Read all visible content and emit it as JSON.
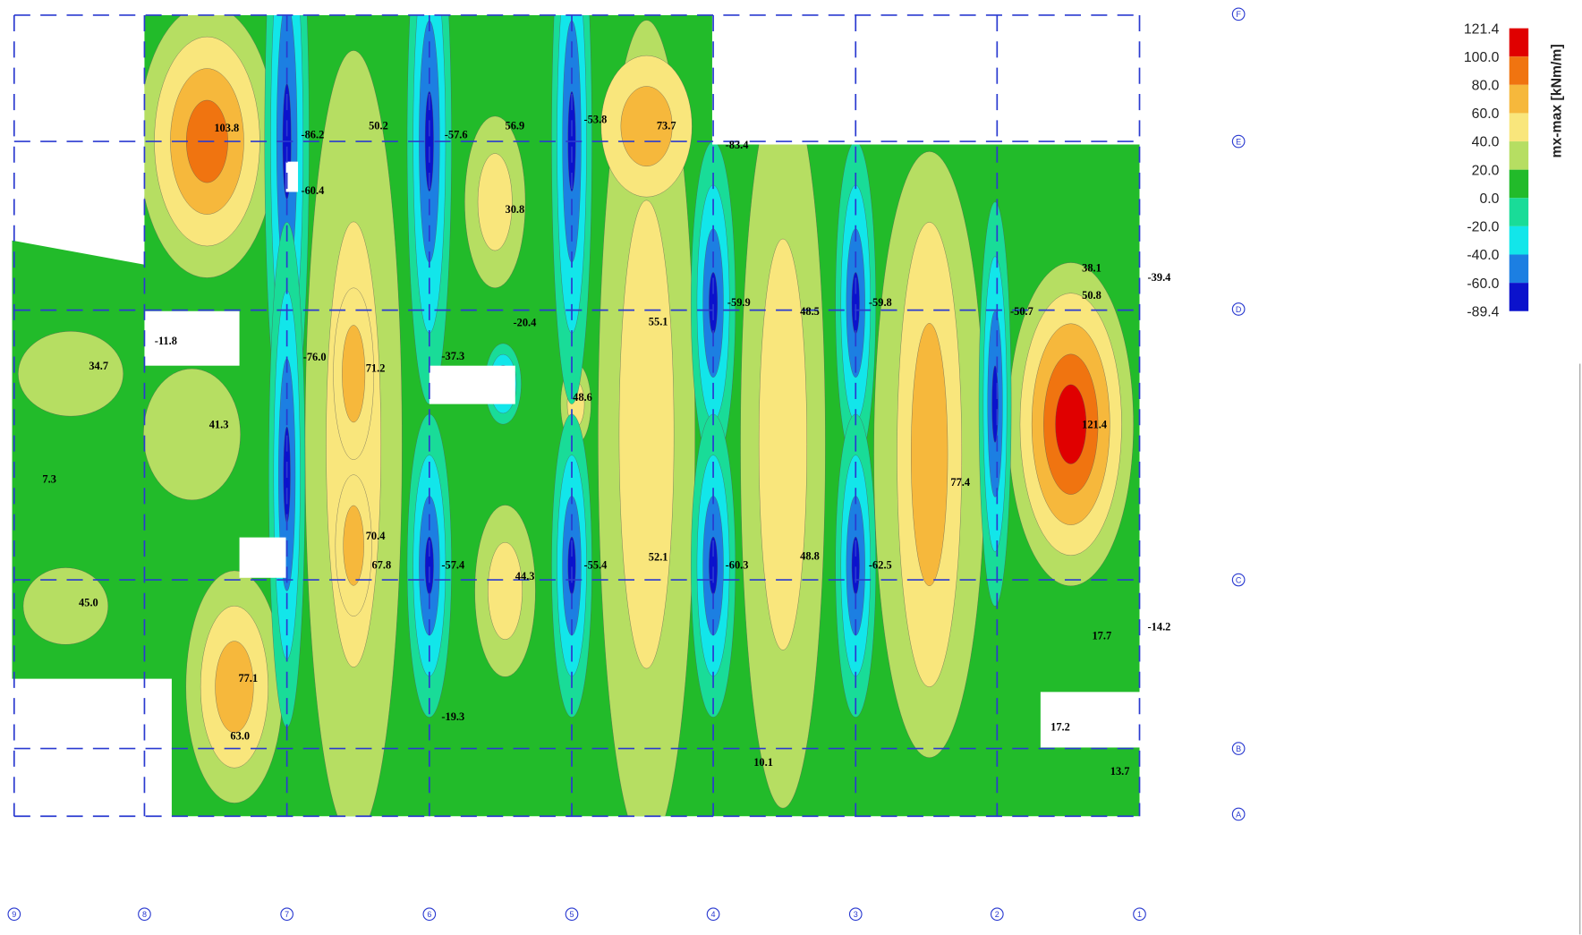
{
  "legend": {
    "title": "mx-max  [kNm/m]",
    "levels": [
      {
        "label": "121.4",
        "color": "#e00000"
      },
      {
        "label": "100.0",
        "color": "#f07410"
      },
      {
        "label": "80.0",
        "color": "#f6b83c"
      },
      {
        "label": "60.0",
        "color": "#f9e67c"
      },
      {
        "label": "40.0",
        "color": "#b6de62"
      },
      {
        "label": "20.0",
        "color": "#22bb2a"
      },
      {
        "label": "0.0",
        "color": "#19dc98"
      },
      {
        "label": "-20.0",
        "color": "#12e6ea"
      },
      {
        "label": "-40.0",
        "color": "#1c7fe2"
      },
      {
        "label": "-60.0",
        "color": "#0b12cc"
      },
      {
        "label": "-89.4"
      }
    ]
  },
  "axes": {
    "columns": [
      "9",
      "8",
      "7",
      "6",
      "5",
      "4",
      "3",
      "2",
      "1"
    ],
    "rows": [
      "F",
      "E",
      "D",
      "C",
      "B",
      "A"
    ]
  },
  "labels": [
    "103.8",
    "-86.2",
    "-60.4",
    "50.2",
    "-57.6",
    "56.9",
    "30.8",
    "-53.8",
    "73.7",
    "-83.4",
    "34.7",
    "71.2",
    "-76.0",
    "41.3",
    "-37.3",
    "48.6",
    "55.1",
    "-59.9",
    "48.5",
    "-59.8",
    "38.1",
    "50.8",
    "-50.7",
    "121.4",
    "77.4",
    "70.4",
    "67.8",
    "-57.4",
    "44.3",
    "-55.4",
    "52.1",
    "-60.3",
    "48.8",
    "-62.5",
    "45.0",
    "77.1",
    "63.0",
    "17.7",
    "10.1",
    "13.7",
    "-19.3",
    "-11.8",
    "-20.4",
    "17.2",
    "7.3",
    "-39.4",
    "-14.2"
  ]
}
